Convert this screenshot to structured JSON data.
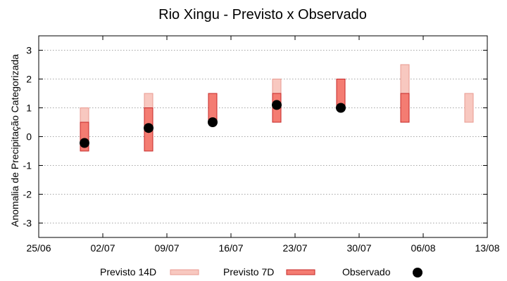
{
  "chart_data": {
    "type": "range-bar-with-points",
    "title": "Rio Xingu - Previsto x Observado",
    "xlabel": "",
    "ylabel": "Anomalia de Precipitação Categorizada",
    "ylim": [
      -3.5,
      3.5
    ],
    "yticks": [
      -3,
      -2,
      -1,
      0,
      1,
      2,
      3
    ],
    "xlim": [
      "2024-06-25",
      "2024-08-13"
    ],
    "xtick_labels": [
      "25/06",
      "02/07",
      "09/07",
      "16/07",
      "23/07",
      "30/07",
      "06/08",
      "13/08"
    ],
    "grid": true,
    "legend_position": "bottom",
    "colors": {
      "previsto_14d_fill": "#f8c8c0",
      "previsto_14d_stroke": "#e89a90",
      "previsto_7d_fill": "#f47c72",
      "previsto_7d_stroke": "#c62828",
      "observado": "#000000",
      "grid": "#888888"
    },
    "series": [
      {
        "name": "Previsto 14D",
        "kind": "range",
        "points": [
          {
            "x": "2024-06-30",
            "low": -0.5,
            "high": 1.0
          },
          {
            "x": "2024-07-07",
            "low": -0.5,
            "high": 1.5
          },
          {
            "x": "2024-07-21",
            "low": 0.5,
            "high": 2.0
          },
          {
            "x": "2024-08-04",
            "low": 1.5,
            "high": 2.5
          },
          {
            "x": "2024-08-11",
            "low": 0.5,
            "high": 1.5
          }
        ]
      },
      {
        "name": "Previsto 7D",
        "kind": "range",
        "points": [
          {
            "x": "2024-06-30",
            "low": -0.5,
            "high": 0.5
          },
          {
            "x": "2024-07-07",
            "low": -0.5,
            "high": 1.0
          },
          {
            "x": "2024-07-14",
            "low": 0.5,
            "high": 1.5
          },
          {
            "x": "2024-07-21",
            "low": 0.5,
            "high": 1.5
          },
          {
            "x": "2024-07-28",
            "low": 1.0,
            "high": 2.0
          },
          {
            "x": "2024-08-04",
            "low": 0.5,
            "high": 1.5
          }
        ]
      },
      {
        "name": "Observado",
        "kind": "point",
        "points": [
          {
            "x": "2024-06-30",
            "y": -0.22
          },
          {
            "x": "2024-07-07",
            "y": 0.3
          },
          {
            "x": "2024-07-14",
            "y": 0.5
          },
          {
            "x": "2024-07-21",
            "y": 1.1
          },
          {
            "x": "2024-07-28",
            "y": 1.0
          }
        ]
      }
    ]
  }
}
